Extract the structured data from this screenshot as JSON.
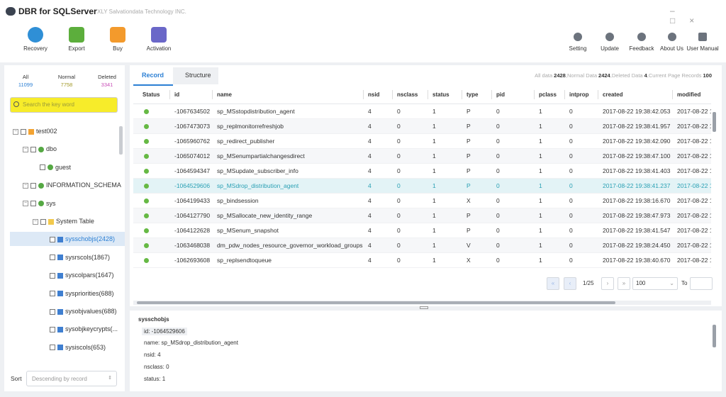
{
  "header": {
    "title": "DBR for SQLServer",
    "company": "XLY Salvationdata Technology INC."
  },
  "toolbar": {
    "left": [
      "Recovery",
      "Export",
      "Buy",
      "Activation"
    ],
    "right": [
      "Setting",
      "Update",
      "Feedback",
      "About Us",
      "User Manual"
    ]
  },
  "stats": [
    {
      "label": "All",
      "value": "11099"
    },
    {
      "label": "Normal",
      "value": "7758"
    },
    {
      "label": "Deleted",
      "value": "3341"
    }
  ],
  "search": {
    "placeholder": "Search the key word"
  },
  "tree": [
    "test002",
    "dbo",
    "guest",
    "INFORMATION_SCHEMA",
    "sys",
    "System Table",
    "sysschobjs(2428)",
    "sysrscols(1867)",
    "syscolpars(1647)",
    "syspriorities(688)",
    "sysobjvalues(688)",
    "sysobjkeycrypts(...",
    "sysiscols(653)"
  ],
  "sort": {
    "label": "Sort",
    "value": "Descending by record"
  },
  "tabs": [
    "Record",
    "Structure"
  ],
  "summary": [
    {
      "label": "All data",
      "value": "2428"
    },
    {
      "label": ",Normal Data",
      "value": "2424"
    },
    {
      "label": ",Deleted Data",
      "value": "4"
    },
    {
      "label": ",Current Page Records",
      "value": "100"
    }
  ],
  "table": {
    "columns": [
      "Status",
      "id",
      "name",
      "nsid",
      "nsclass",
      "status",
      "type",
      "pid",
      "pclass",
      "intprop",
      "created",
      "modified"
    ],
    "rows": [
      [
        "-1067634502",
        "sp_MSstopdistribution_agent",
        "4",
        "0",
        "1",
        "P",
        "0",
        "1",
        "0",
        "2017-08-22 19:38:42.053",
        "2017-08-22 1"
      ],
      [
        "-1067473073",
        "sp_replmonitorrefreshjob",
        "4",
        "0",
        "1",
        "P",
        "0",
        "1",
        "0",
        "2017-08-22 19:38:41.957",
        "2017-08-22 1"
      ],
      [
        "-1065960762",
        "sp_redirect_publisher",
        "4",
        "0",
        "1",
        "P",
        "0",
        "1",
        "0",
        "2017-08-22 19:38:42.090",
        "2017-08-22 1"
      ],
      [
        "-1065074012",
        "sp_MSenumpartialchangesdirect",
        "4",
        "0",
        "1",
        "P",
        "0",
        "1",
        "0",
        "2017-08-22 19:38:47.100",
        "2017-08-22 1"
      ],
      [
        "-1064594347",
        "sp_MSupdate_subscriber_info",
        "4",
        "0",
        "1",
        "P",
        "0",
        "1",
        "0",
        "2017-08-22 19:38:41.403",
        "2017-08-22 1"
      ],
      [
        "-1064529606",
        "sp_MSdrop_distribution_agent",
        "4",
        "0",
        "1",
        "P",
        "0",
        "1",
        "0",
        "2017-08-22 19:38:41.237",
        "2017-08-22 1"
      ],
      [
        "-1064199433",
        "sp_bindsession",
        "4",
        "0",
        "1",
        "X",
        "0",
        "1",
        "0",
        "2017-08-22 19:38:16.670",
        "2017-08-22 1"
      ],
      [
        "-1064127790",
        "sp_MSallocate_new_identity_range",
        "4",
        "0",
        "1",
        "P",
        "0",
        "1",
        "0",
        "2017-08-22 19:38:47.973",
        "2017-08-22 1"
      ],
      [
        "-1064122628",
        "sp_MSenum_snapshot",
        "4",
        "0",
        "1",
        "P",
        "0",
        "1",
        "0",
        "2017-08-22 19:38:41.547",
        "2017-08-22 1"
      ],
      [
        "-1063468038",
        "dm_pdw_nodes_resource_governor_workload_groups",
        "4",
        "0",
        "1",
        "V",
        "0",
        "1",
        "0",
        "2017-08-22 19:38:24.450",
        "2017-08-22 1"
      ],
      [
        "-1062693608",
        "sp_replsendtoqueue",
        "4",
        "0",
        "1",
        "X",
        "0",
        "1",
        "0",
        "2017-08-22 19:38:40.670",
        "2017-08-22 1"
      ]
    ],
    "selected": 5
  },
  "pagination": {
    "page": "1/25",
    "page_size": "100",
    "goto": "To"
  },
  "detail": {
    "title": "sysschobjs",
    "fields": [
      "id: -1064529606",
      "name: sp_MSdrop_distribution_agent",
      "nsid: 4",
      "nsclass: 0",
      "status: 1"
    ]
  }
}
